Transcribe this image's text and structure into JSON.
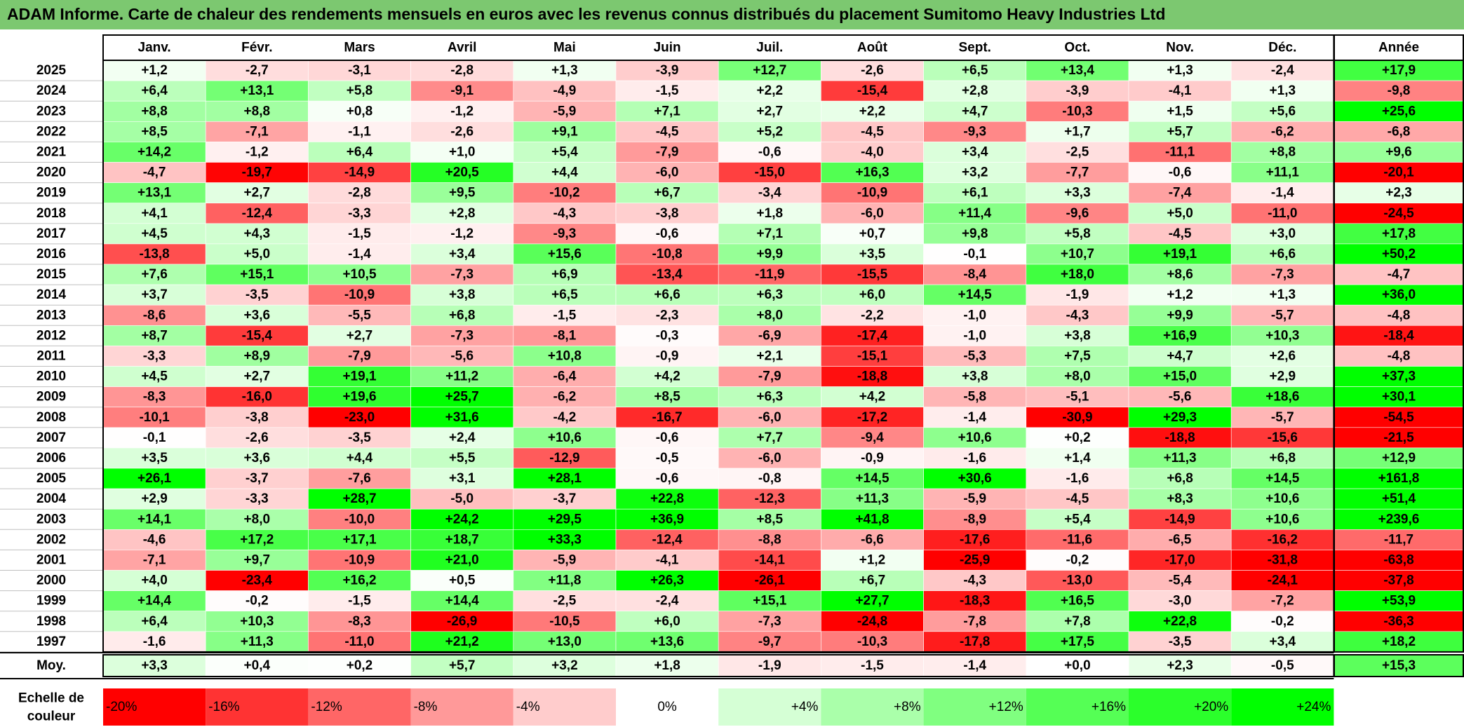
{
  "title": "ADAM Informe. Carte de chaleur des rendements mensuels en euros avec les revenus connus distribués du placement Sumitomo Heavy Industries Ltd",
  "chart_data": {
    "type": "heatmap",
    "title": "ADAM Informe. Carte de chaleur des rendements mensuels en euros avec les revenus connus distribués du placement Sumitomo Heavy Industries Ltd",
    "months": [
      "Janv.",
      "Févr.",
      "Mars",
      "Avril",
      "Mai",
      "Juin",
      "Juil.",
      "Août",
      "Sept.",
      "Oct.",
      "Nov.",
      "Déc."
    ],
    "year_header": "Année",
    "avg_label": "Moy.",
    "rows": [
      {
        "year": "2025",
        "values": [
          1.2,
          -2.7,
          -3.1,
          -2.8,
          1.3,
          -3.9,
          12.7,
          -2.6,
          6.5,
          13.4,
          1.3,
          -2.4
        ],
        "annual": 17.9
      },
      {
        "year": "2024",
        "values": [
          6.4,
          13.1,
          5.8,
          -9.1,
          -4.9,
          -1.5,
          2.2,
          -15.4,
          2.8,
          -3.9,
          -4.1,
          1.3
        ],
        "annual": -9.8
      },
      {
        "year": "2023",
        "values": [
          8.8,
          8.8,
          0.8,
          -1.2,
          -5.9,
          7.1,
          2.7,
          2.2,
          4.7,
          -10.3,
          1.5,
          5.6
        ],
        "annual": 25.6
      },
      {
        "year": "2022",
        "values": [
          8.5,
          -7.1,
          -1.1,
          -2.6,
          9.1,
          -4.5,
          5.2,
          -4.5,
          -9.3,
          1.7,
          5.7,
          -6.2
        ],
        "annual": -6.8
      },
      {
        "year": "2021",
        "values": [
          14.2,
          -1.2,
          6.4,
          1.0,
          5.4,
          -7.9,
          -0.6,
          -4.0,
          3.4,
          -2.5,
          -11.1,
          8.8
        ],
        "annual": 9.6
      },
      {
        "year": "2020",
        "values": [
          -4.7,
          -19.7,
          -14.9,
          20.5,
          4.4,
          -6.0,
          -15.0,
          16.3,
          3.2,
          -7.7,
          -0.6,
          11.1
        ],
        "annual": -20.1
      },
      {
        "year": "2019",
        "values": [
          13.1,
          2.7,
          -2.8,
          9.5,
          -10.2,
          6.7,
          -3.4,
          -10.9,
          6.1,
          3.3,
          -7.4,
          -1.4
        ],
        "annual": 2.3
      },
      {
        "year": "2018",
        "values": [
          4.1,
          -12.4,
          -3.3,
          2.8,
          -4.3,
          -3.8,
          1.8,
          -6.0,
          11.4,
          -9.6,
          5.0,
          -11.0
        ],
        "annual": -24.5
      },
      {
        "year": "2017",
        "values": [
          4.5,
          4.3,
          -1.5,
          -1.2,
          -9.3,
          -0.6,
          7.1,
          0.7,
          9.8,
          5.8,
          -4.5,
          3.0
        ],
        "annual": 17.8
      },
      {
        "year": "2016",
        "values": [
          -13.8,
          5.0,
          -1.4,
          3.4,
          15.6,
          -10.8,
          9.9,
          3.5,
          -0.1,
          10.7,
          19.1,
          6.6
        ],
        "annual": 50.2
      },
      {
        "year": "2015",
        "values": [
          7.6,
          15.1,
          10.5,
          -7.3,
          6.9,
          -13.4,
          -11.9,
          -15.5,
          -8.4,
          18.0,
          8.6,
          -7.3
        ],
        "annual": -4.7
      },
      {
        "year": "2014",
        "values": [
          3.7,
          -3.5,
          -10.9,
          3.8,
          6.5,
          6.6,
          6.3,
          6.0,
          14.5,
          -1.9,
          1.2,
          1.3
        ],
        "annual": 36.0
      },
      {
        "year": "2013",
        "values": [
          -8.6,
          3.6,
          -5.5,
          6.8,
          -1.5,
          -2.3,
          8.0,
          -2.2,
          -1.0,
          -4.3,
          9.9,
          -5.7
        ],
        "annual": -4.8
      },
      {
        "year": "2012",
        "values": [
          8.7,
          -15.4,
          2.7,
          -7.3,
          -8.1,
          -0.3,
          -6.9,
          -17.4,
          -1.0,
          3.8,
          16.9,
          10.3
        ],
        "annual": -18.4
      },
      {
        "year": "2011",
        "values": [
          -3.3,
          8.9,
          -7.9,
          -5.6,
          10.8,
          -0.9,
          2.1,
          -15.1,
          -5.3,
          7.5,
          4.7,
          2.6
        ],
        "annual": -4.8
      },
      {
        "year": "2010",
        "values": [
          4.5,
          2.7,
          19.1,
          11.2,
          -6.4,
          4.2,
          -7.9,
          -18.8,
          3.8,
          8.0,
          15.0,
          2.9
        ],
        "annual": 37.3
      },
      {
        "year": "2009",
        "values": [
          -8.3,
          -16.0,
          19.6,
          25.7,
          -6.2,
          8.5,
          6.3,
          4.2,
          -5.8,
          -5.1,
          -5.6,
          18.6
        ],
        "annual": 30.1
      },
      {
        "year": "2008",
        "values": [
          -10.1,
          -3.8,
          -23.0,
          31.6,
          -4.2,
          -16.7,
          -6.0,
          -17.2,
          -1.4,
          -30.9,
          29.3,
          -5.7
        ],
        "annual": -54.5
      },
      {
        "year": "2007",
        "values": [
          -0.1,
          -2.6,
          -3.5,
          2.4,
          10.6,
          -0.6,
          7.7,
          -9.4,
          10.6,
          0.2,
          -18.8,
          -15.6
        ],
        "annual": -21.5
      },
      {
        "year": "2006",
        "values": [
          3.5,
          3.6,
          4.4,
          5.5,
          -12.9,
          -0.5,
          -6.0,
          -0.9,
          -1.6,
          1.4,
          11.3,
          6.8
        ],
        "annual": 12.9
      },
      {
        "year": "2005",
        "values": [
          26.1,
          -3.7,
          -7.6,
          3.1,
          28.1,
          -0.6,
          -0.8,
          14.5,
          30.6,
          -1.6,
          6.8,
          14.5
        ],
        "annual": 161.8
      },
      {
        "year": "2004",
        "values": [
          2.9,
          -3.3,
          28.7,
          -5.0,
          -3.7,
          22.8,
          -12.3,
          11.3,
          -5.9,
          -4.5,
          8.3,
          10.6
        ],
        "annual": 51.4
      },
      {
        "year": "2003",
        "values": [
          14.1,
          8.0,
          -10.0,
          24.2,
          29.5,
          36.9,
          8.5,
          41.8,
          -8.9,
          5.4,
          -14.9,
          10.6
        ],
        "annual": 239.6
      },
      {
        "year": "2002",
        "values": [
          -4.6,
          17.2,
          17.1,
          18.7,
          33.3,
          -12.4,
          -8.8,
          -6.6,
          -17.6,
          -11.6,
          -6.5,
          -16.2
        ],
        "annual": -11.7
      },
      {
        "year": "2001",
        "values": [
          -7.1,
          9.7,
          -10.9,
          21.0,
          -5.9,
          -4.1,
          -14.1,
          1.2,
          -25.9,
          -0.2,
          -17.0,
          -31.8
        ],
        "annual": -63.8
      },
      {
        "year": "2000",
        "values": [
          4.0,
          -23.4,
          16.2,
          0.5,
          11.8,
          26.3,
          -26.1,
          6.7,
          -4.3,
          -13.0,
          -5.4,
          -24.1
        ],
        "annual": -37.8
      },
      {
        "year": "1999",
        "values": [
          14.4,
          -0.2,
          -1.5,
          14.4,
          -2.5,
          -2.4,
          15.1,
          27.7,
          -18.3,
          16.5,
          -3.0,
          -7.2
        ],
        "annual": 53.9
      },
      {
        "year": "1998",
        "values": [
          6.4,
          10.3,
          -8.3,
          -26.9,
          -10.5,
          6.0,
          -7.3,
          -24.8,
          -7.8,
          7.8,
          22.8,
          -0.2
        ],
        "annual": -36.3
      },
      {
        "year": "1997",
        "values": [
          -1.6,
          11.3,
          -11.0,
          21.2,
          13.0,
          13.6,
          -9.7,
          -10.3,
          -17.8,
          17.5,
          -3.5,
          3.4
        ],
        "annual": 18.2
      }
    ],
    "averages": [
      3.3,
      0.4,
      0.2,
      5.7,
      3.2,
      1.8,
      -1.9,
      -1.5,
      -1.4,
      0.0,
      2.3,
      -0.5
    ],
    "avg_annual": 15.3,
    "scale_label_1": "Echelle de",
    "scale_label_2": "couleur",
    "scale": [
      "-20%",
      "-16%",
      "-12%",
      "-8%",
      "-4%",
      "0%",
      "+4%",
      "+8%",
      "+12%",
      "+16%",
      "+20%",
      "+24%"
    ],
    "color_range": [
      -20,
      24
    ],
    "colors": {
      "negative": "#ff0000",
      "zero": "#ffffff",
      "positive": "#00ff00",
      "title_bg": "#7cc870"
    }
  }
}
